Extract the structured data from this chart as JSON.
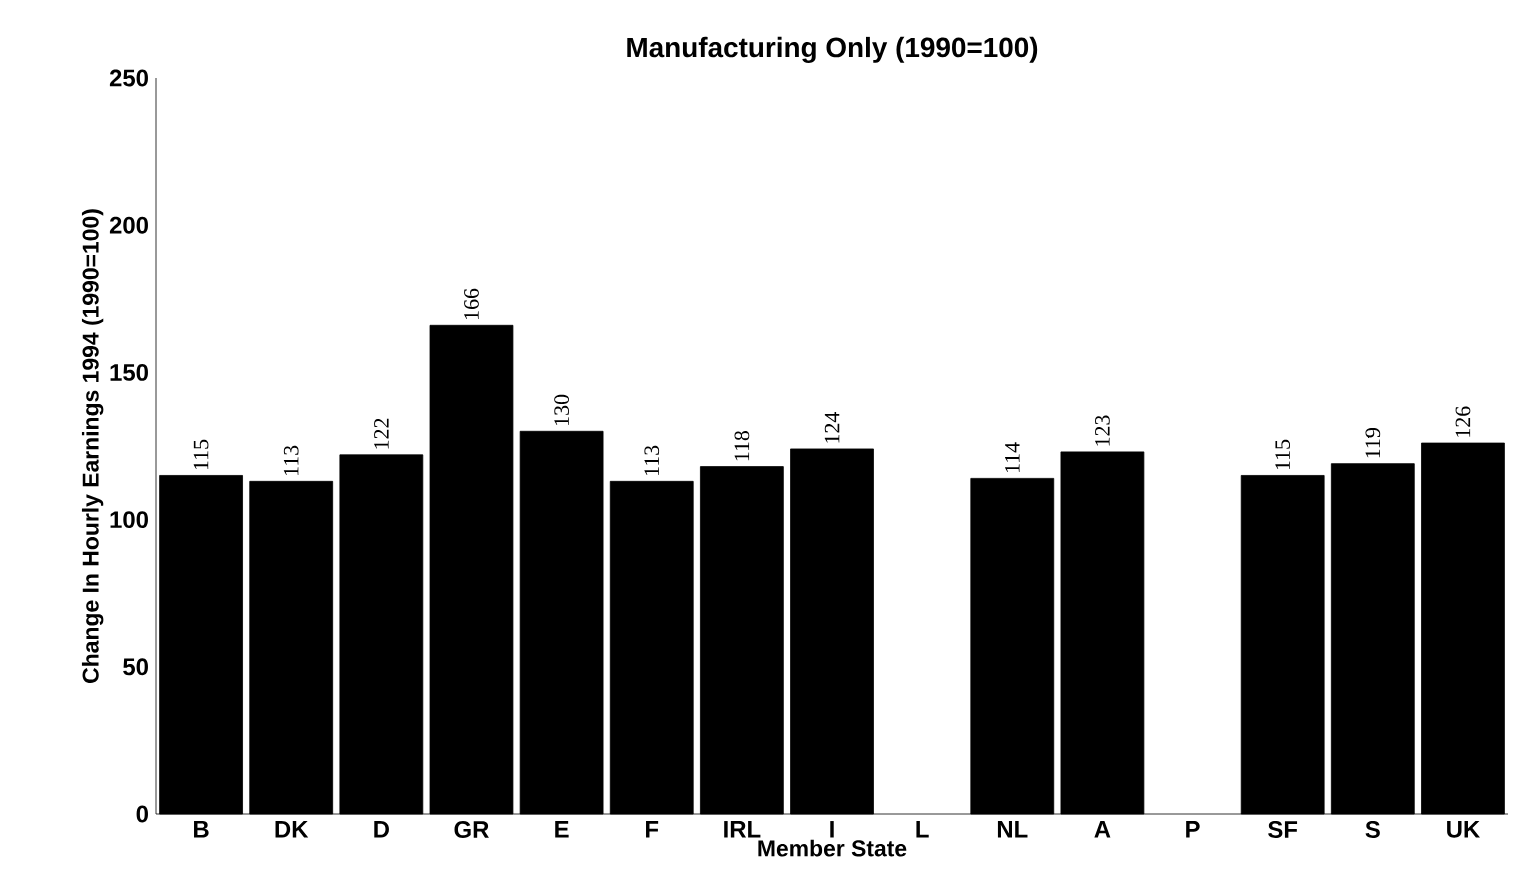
{
  "chart_data": {
    "type": "bar",
    "title": "Manufacturing Only (1990=100)",
    "xlabel": "Member State",
    "ylabel": "Change In Hourly Earnings 1994 (1990=100)",
    "categories": [
      "B",
      "DK",
      "D",
      "GR",
      "E",
      "F",
      "IRL",
      "I",
      "L",
      "NL",
      "A",
      "P",
      "SF",
      "S",
      "UK"
    ],
    "values": [
      115,
      113,
      122,
      166,
      130,
      113,
      118,
      124,
      null,
      114,
      123,
      null,
      115,
      119,
      126
    ],
    "color": "#000000",
    "ylim": [
      0,
      250
    ],
    "yticks": [
      0,
      50,
      100,
      150,
      200,
      250
    ],
    "data_labels": true
  }
}
